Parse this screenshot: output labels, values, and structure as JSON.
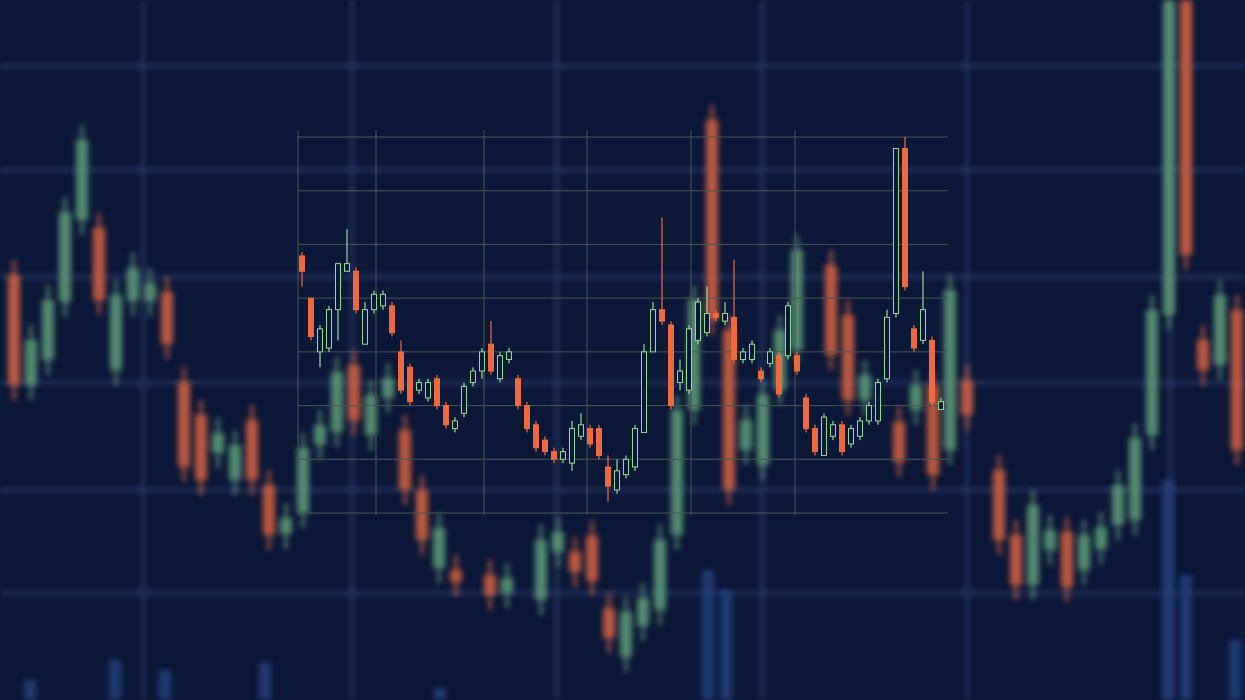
{
  "chart_data": {
    "type": "candlestick",
    "open": [
      67,
      56,
      42,
      43,
      53,
      63,
      63,
      44,
      53,
      54,
      54,
      42,
      38,
      32,
      30,
      35,
      28,
      22,
      26,
      34,
      37,
      44,
      35,
      40,
      35,
      28,
      23,
      19,
      16,
      14,
      13,
      20,
      22,
      22,
      12,
      6,
      10,
      12,
      21,
      42,
      53,
      49,
      34,
      32,
      45,
      47,
      52,
      50,
      51,
      40,
      40,
      37,
      39,
      41,
      41,
      41,
      30,
      22,
      15,
      20,
      23,
      18,
      20,
      24,
      24,
      35,
      52,
      95,
      48,
      45,
      45,
      27
    ],
    "high": [
      68,
      56,
      49,
      54,
      65,
      74,
      64,
      55,
      58,
      58,
      55,
      45,
      39,
      35,
      35,
      36,
      29,
      25,
      34,
      38,
      43,
      50,
      42,
      43,
      36,
      29,
      24,
      20,
      17,
      17,
      24,
      26,
      23,
      23,
      15,
      14,
      15,
      23,
      44,
      55,
      77,
      50,
      40,
      49,
      56,
      59,
      53,
      55,
      66,
      43,
      45,
      38,
      43,
      42,
      55,
      42,
      31,
      23,
      26,
      24,
      24,
      23,
      25,
      29,
      35,
      53,
      95,
      98,
      49,
      63,
      46,
      30
    ],
    "low": [
      59,
      45,
      38,
      42,
      45,
      63,
      52,
      44,
      52,
      53,
      46,
      31,
      28,
      31,
      29,
      27,
      22,
      21,
      25,
      33,
      35,
      36,
      34,
      39,
      27,
      21,
      16,
      15,
      13,
      13,
      11,
      19,
      17,
      14,
      3,
      5,
      9,
      11,
      21,
      42,
      49,
      27,
      32,
      31,
      44,
      46,
      50,
      49,
      39,
      39,
      39,
      34,
      38,
      30,
      40,
      36,
      21,
      15,
      15,
      19,
      15,
      17,
      19,
      23,
      23,
      34,
      51,
      58,
      42,
      44,
      28,
      27
    ],
    "close": [
      63,
      46,
      48,
      53,
      65,
      65,
      53,
      53,
      57,
      57,
      47,
      32,
      29,
      34,
      34,
      28,
      23,
      24,
      33,
      37,
      42,
      37,
      41,
      42,
      28,
      22,
      17,
      16,
      14,
      16,
      22,
      23,
      18,
      15,
      7,
      11,
      14,
      22,
      42,
      53,
      50,
      28,
      37,
      48,
      55,
      52,
      51,
      52,
      40,
      42,
      44,
      35,
      42,
      31,
      54,
      37,
      22,
      16,
      25,
      23,
      16,
      22,
      24,
      28,
      34,
      51,
      95,
      59,
      43,
      53,
      29,
      29
    ],
    "up_color": "#8fdc96",
    "down_color": "#ee6a3e",
    "ylim": [
      0,
      98
    ],
    "yticks": [
      0,
      14,
      28,
      42,
      56,
      70,
      84,
      98
    ],
    "grid": true
  }
}
